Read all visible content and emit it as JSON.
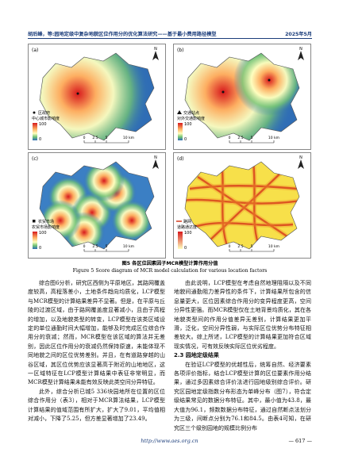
{
  "header": {
    "title": "胡后峰，等:园地定级中复杂地貌区位作用分的优化算法研究——基于最小费用路径模型",
    "date": "2025年5月"
  },
  "figure": {
    "panels": [
      {
        "label": "(a)",
        "legend_symbol": "区政府",
        "legend_title": "中心城市影响度",
        "scale_max": 100,
        "scale_min": 0
      },
      {
        "label": "(b)",
        "legend_symbol": "交通站点",
        "legend_title": "对外交通影响度",
        "scale_max": 100,
        "scale_min": 0
      },
      {
        "label": "(c)",
        "legend_symbol": "农贸市场",
        "legend_title": "农贸市场影响度",
        "scale_max": 100,
        "scale_min": 0
      },
      {
        "label": "(d)",
        "legend_symbol": "路网",
        "legend_title": "道路通达度",
        "scale_max": 100,
        "scale_min": 0
      }
    ],
    "north": "N",
    "scale_bar": [
      "0",
      "2.5",
      "5",
      "10 km"
    ],
    "caption_zh": "图5 各区位因素因子MCR模型计算作用分值",
    "caption_en": "Figure 5 Score diagram of MCR model calculation for various location factors"
  },
  "body": {
    "left": [
      "综合图6分析，研究区西侧为平原地区，其路网覆盖度较高，高程落差小，土地条件趋向均质化，LCP模型与MCR模型的计算结果差异不显著。但是，在平原与丘陵的过渡区域，由于路网覆盖度显著减小，且由于高程的增加，以及地貌类型的转变，LCP模型在该类区域设定的单位通勤时间大幅增加，能够及时完成区位综合作用分的衰减；然而，MCR模型在该区域的算法并无差别，因此区位作用分的衰减仍然保持原速，未能体现不同地貌之间的区位优势差别。并且，在有道路穿越的山谷区域，其区位优势应该显著高于附近的山地地区，这一区域特征在LCP模型计算结果中表征非常明显，而MCR模型计算结果未能有效反映此类空间分异特征。",
      "此外，综合分析已城5 336块园地所在位置的区位综合作用分（表3），相对于MCR算法结果，LCP模型计算结果的值域范围有所扩大，扩大了9.01，平均值相对减小，下降了5.25，但方差显著增加了23.49。"
    ],
    "right": [
      "由此说明，LCP模型在考虑自然地理阻隔以及不同地貌间通勤阻力差异性的条件下，计算结果所包含的信息量更大，区位因素综合作用分的变异程度更高，空间分异性更强。而MCR模型仅在土地背景均质化，其在各地貌类型间的作用分值差异无差别，计算结果更加平滑，泛化，空间分异性弱，与实际区位优势分布特征相差较大。综上所述，LCP模型的计算结果更加符合区域现实情况，可有效反映实际区位优劣程度。"
    ],
    "heading": "2.3 园地定级结果",
    "right2": "在验证LCP模型的优越性后，统筹自然、经济要素各项评价指标，结合LCP模型计算的区位要素作用分结果，通过多因素综合评价法进行园地级别综合评价。研究区园地定级指数分布形态为单峰分布（图7），符合定级结果常见的数据分布特征。其中，最小值为43.8，最大值为96.1，频数数据分布特征，通过自然断点法划分为三级，间断点分别为76.1和84.5。由表4可知，在研究区三个级别园地的规模比例分布"
  },
  "footer": {
    "url": "http://www.aes.org.cn",
    "page": "— 617 —"
  }
}
